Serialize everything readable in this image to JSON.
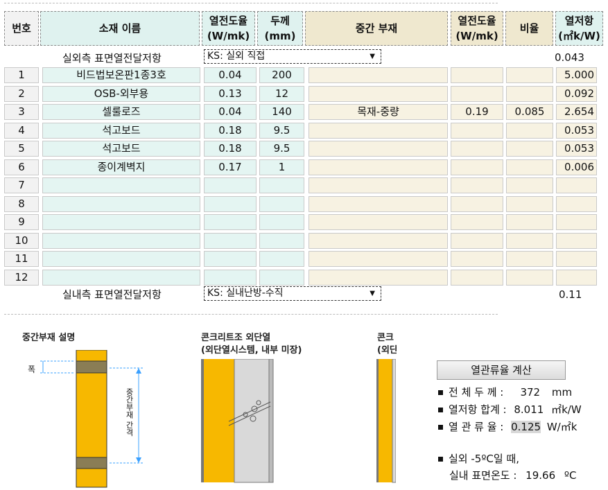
{
  "headers": {
    "num": "번호",
    "material": "소재 이름",
    "conductivity": "열전도율\n(W/mk)",
    "thickness": "두께\n(mm)",
    "middle": "중간 부재",
    "mid_conductivity": "열전도율\n(W/mk)",
    "ratio": "비율",
    "resistance": "열저항\n(㎡k/W)"
  },
  "outer_surface": {
    "label": "실외측 표면열전달저항",
    "select": "KS: 실외 직접",
    "value": "0.043"
  },
  "inner_surface": {
    "label": "실내측 표면열전달저항",
    "select": "KS: 실내난방-수직",
    "value": "0.11"
  },
  "rows": [
    {
      "num": "1",
      "material": "비드법보온판1종3호",
      "cond": "0.04",
      "thick": "200",
      "middle": "",
      "mcond": "",
      "ratio": "",
      "res": "5.000"
    },
    {
      "num": "2",
      "material": "OSB-외부용",
      "cond": "0.13",
      "thick": "12",
      "middle": "",
      "mcond": "",
      "ratio": "",
      "res": "0.092"
    },
    {
      "num": "3",
      "material": "셀룰로즈",
      "cond": "0.04",
      "thick": "140",
      "middle": "목재-중량",
      "mcond": "0.19",
      "ratio": "0.085",
      "res": "2.654"
    },
    {
      "num": "4",
      "material": "석고보드",
      "cond": "0.18",
      "thick": "9.5",
      "middle": "",
      "mcond": "",
      "ratio": "",
      "res": "0.053"
    },
    {
      "num": "5",
      "material": "석고보드",
      "cond": "0.18",
      "thick": "9.5",
      "middle": "",
      "mcond": "",
      "ratio": "",
      "res": "0.053"
    },
    {
      "num": "6",
      "material": "종이계벽지",
      "cond": "0.17",
      "thick": "1",
      "middle": "",
      "mcond": "",
      "ratio": "",
      "res": "0.006"
    },
    {
      "num": "7",
      "material": "",
      "cond": "",
      "thick": "",
      "middle": "",
      "mcond": "",
      "ratio": "",
      "res": ""
    },
    {
      "num": "8",
      "material": "",
      "cond": "",
      "thick": "",
      "middle": "",
      "mcond": "",
      "ratio": "",
      "res": ""
    },
    {
      "num": "9",
      "material": "",
      "cond": "",
      "thick": "",
      "middle": "",
      "mcond": "",
      "ratio": "",
      "res": ""
    },
    {
      "num": "10",
      "material": "",
      "cond": "",
      "thick": "",
      "middle": "",
      "mcond": "",
      "ratio": "",
      "res": ""
    },
    {
      "num": "11",
      "material": "",
      "cond": "",
      "thick": "",
      "middle": "",
      "mcond": "",
      "ratio": "",
      "res": ""
    },
    {
      "num": "12",
      "material": "",
      "cond": "",
      "thick": "",
      "middle": "",
      "mcond": "",
      "ratio": "",
      "res": ""
    }
  ],
  "diagram": {
    "mid_member_title": "중간부재 설명",
    "width_label": "폭",
    "spacing_label": "중간부재 간격",
    "concrete_title_1": "콘크리트조 외단열",
    "concrete_sub_1": "(외단열시스템, 내부 미장)",
    "concrete_title_2": "콘크",
    "concrete_sub_2": "(외단"
  },
  "calc": {
    "button": "열관류율 계산",
    "total_thickness_label": "전 체 두 께 :",
    "total_thickness_value": "372",
    "total_thickness_unit": "mm",
    "resistance_label": "열저항 합계 :",
    "resistance_value": "8.011",
    "resistance_unit": "㎡k/W",
    "u_label": "열 관 류 율 :",
    "u_value": "0.125",
    "u_unit": "W/㎡k",
    "outdoor_label": "실외 -5ºC일 때,",
    "surface_label": "실내 표면온도 :",
    "surface_value": "19.66",
    "surface_unit": "ºC"
  },
  "colors": {
    "insulation": "#f7b800",
    "stud": "#8a7d55",
    "concrete": "#d9d9d9"
  }
}
